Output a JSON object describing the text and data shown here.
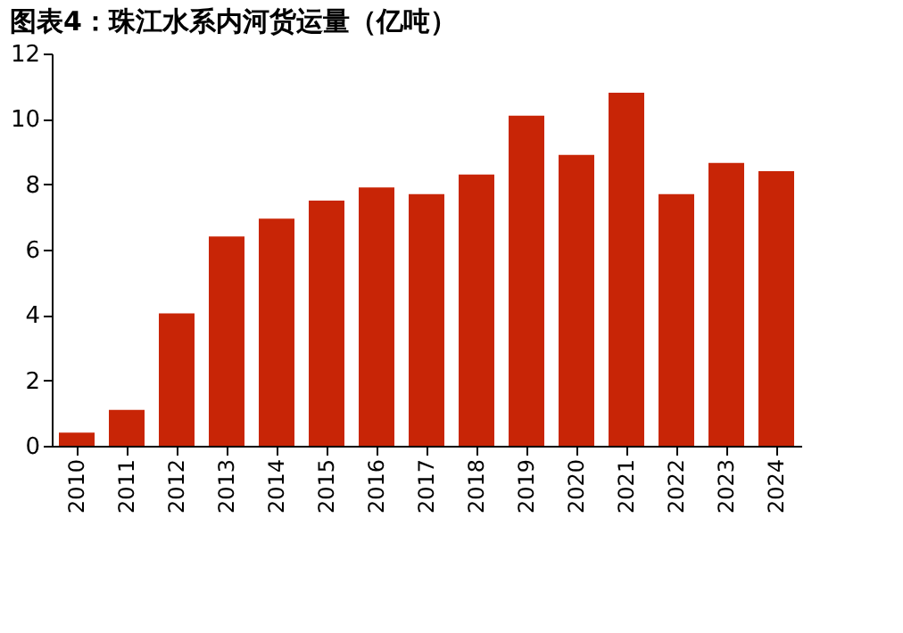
{
  "chart_data": {
    "type": "bar",
    "title": "图表4：珠江水系内河货运量（亿吨）",
    "categories": [
      "2010",
      "2011",
      "2012",
      "2013",
      "2014",
      "2015",
      "2016",
      "2017",
      "2018",
      "2019",
      "2020",
      "2021",
      "2022",
      "2023",
      "2024"
    ],
    "values": [
      0.4,
      1.1,
      4.05,
      6.4,
      6.95,
      7.5,
      7.9,
      7.7,
      8.3,
      10.1,
      8.9,
      10.8,
      7.7,
      8.65,
      8.4
    ],
    "color": "#c82506",
    "ylim": [
      0,
      12
    ],
    "yticks": [
      0,
      2,
      4,
      6,
      8,
      10,
      12
    ],
    "grid": false
  }
}
